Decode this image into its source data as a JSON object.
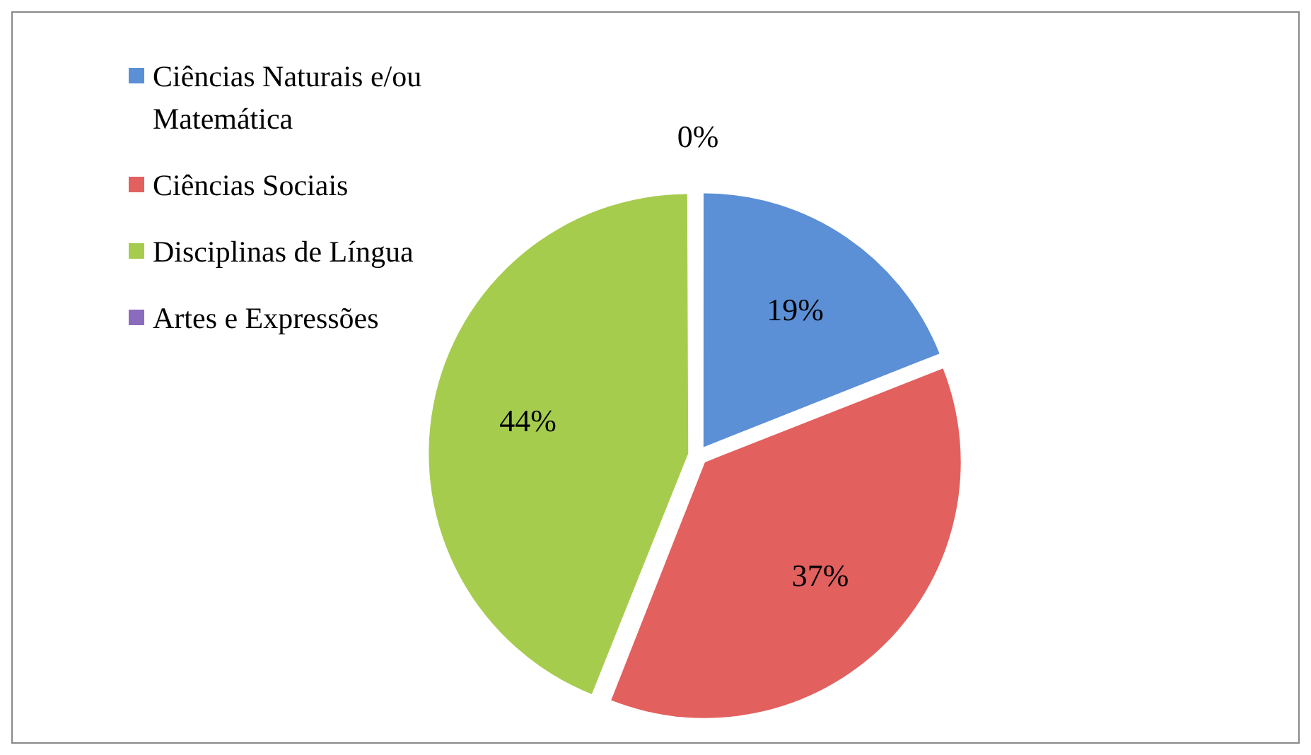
{
  "chart_data": {
    "type": "pie",
    "categories": [
      "Ciências Naturais e/ou Matemática",
      "Ciências Sociais",
      "Disciplinas de Língua",
      "Artes e Expressões"
    ],
    "values": [
      19,
      37,
      44,
      0
    ],
    "colors": [
      "#5b8fd6",
      "#e2605e",
      "#a6cc4e",
      "#8a6bbd"
    ],
    "value_labels": [
      "19%",
      "37%",
      "44%",
      "0%"
    ],
    "legend": "top left"
  }
}
